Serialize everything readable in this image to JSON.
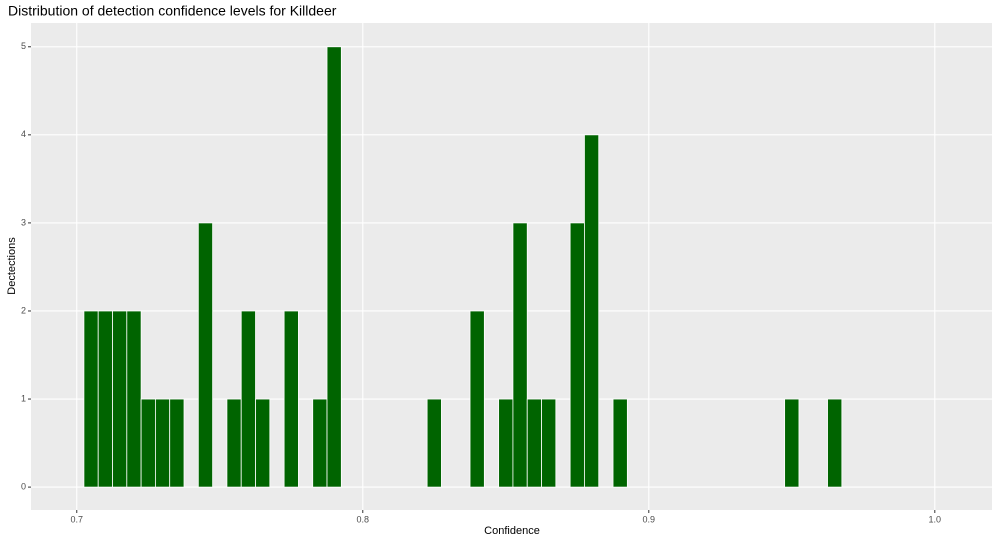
{
  "chart_data": {
    "type": "histogram",
    "title": "Distribution of detection confidence levels for Killdeer",
    "xlabel": "Confidence",
    "ylabel": "Dectections",
    "bins": [
      0.7025,
      0.7075,
      0.7125,
      0.7175,
      0.7225,
      0.7275,
      0.7325,
      0.7375,
      0.7425,
      0.7475,
      0.7525,
      0.7575,
      0.7625,
      0.7675,
      0.7725,
      0.7775,
      0.7825,
      0.7875,
      0.7925,
      0.7975,
      0.8025,
      0.8075,
      0.8125,
      0.8175,
      0.8225,
      0.8275,
      0.8325,
      0.8375,
      0.8425,
      0.8475,
      0.8525,
      0.8575,
      0.8625,
      0.8675,
      0.8725,
      0.8775,
      0.8825,
      0.8875,
      0.8925,
      0.8975,
      0.9025,
      0.9075,
      0.9125,
      0.9175,
      0.9225,
      0.9275,
      0.9325,
      0.9375,
      0.9425,
      0.9475,
      0.9525,
      0.9575,
      0.9625,
      0.9675
    ],
    "values": [
      2,
      2,
      2,
      2,
      1,
      1,
      1,
      0,
      3,
      0,
      1,
      2,
      1,
      0,
      2,
      0,
      1,
      5,
      0,
      0,
      0,
      0,
      0,
      0,
      1,
      0,
      0,
      2,
      0,
      1,
      3,
      1,
      1,
      0,
      3,
      4,
      0,
      1,
      0,
      0,
      0,
      0,
      0,
      0,
      0,
      0,
      0,
      0,
      0,
      1,
      0,
      0,
      1
    ],
    "color": "#006400",
    "xlim": [
      0.684,
      1.02
    ],
    "xticks": [
      0.7,
      0.8,
      0.9,
      {
        "value": 1,
        "label": "1.0"
      }
    ],
    "ylim": [
      -0.26,
      5.27
    ],
    "yticks": [
      0,
      1,
      2,
      3,
      4,
      5
    ],
    "grid": true
  }
}
